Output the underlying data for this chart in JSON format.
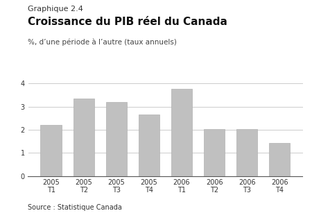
{
  "title_small": "Graphique 2.4",
  "title_large": "Croissance du PIB réel du Canada",
  "ylabel": "%, d’une période à l’autre (taux annuels)",
  "categories": [
    "2005\nT1",
    "2005\nT2",
    "2005\nT3",
    "2005\nT4",
    "2006\nT1",
    "2006\nT2",
    "2006\nT3",
    "2006\nT4"
  ],
  "values": [
    2.22,
    3.35,
    3.2,
    2.65,
    3.78,
    2.02,
    2.02,
    1.42
  ],
  "bar_color": "#c0c0c0",
  "bar_edge_color": "#b0b0b0",
  "ylim": [
    0,
    4
  ],
  "yticks": [
    0,
    1,
    2,
    3,
    4
  ],
  "source": "Source : Statistique Canada",
  "background_color": "#ffffff",
  "fig_background": "#ffffff",
  "grid_color": "#cccccc",
  "title_small_fontsize": 8,
  "title_large_fontsize": 11,
  "ylabel_fontsize": 7.5,
  "source_fontsize": 7,
  "tick_fontsize": 7
}
